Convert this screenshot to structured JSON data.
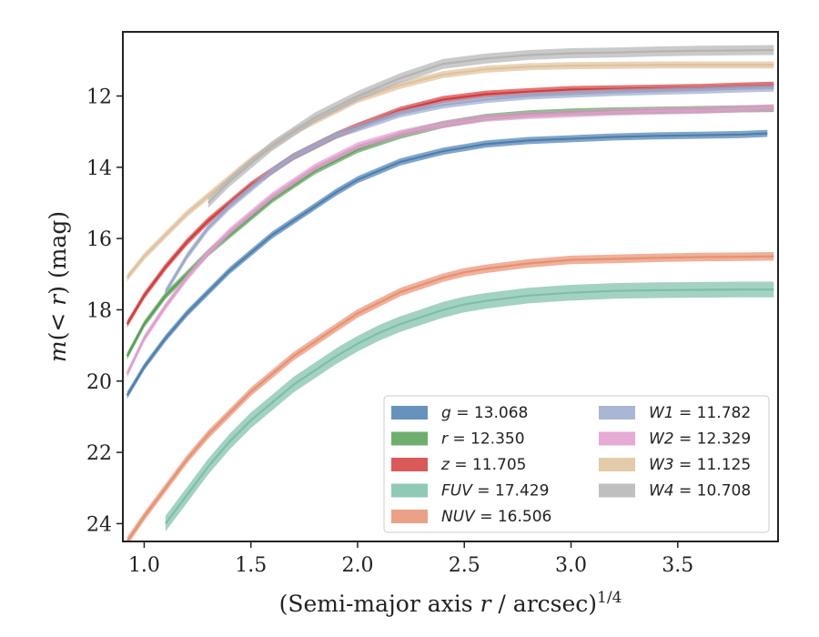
{
  "chart_data": {
    "type": "line",
    "xlabel": "(Semi-major axis r / arcsec)^{1/4}",
    "ylabel": "m(< r) (mag)",
    "xlim": [
      0.9,
      3.97
    ],
    "ylim": [
      24.5,
      10.2
    ],
    "y_inverted": true,
    "grid": false,
    "legend_placement": "lower-right",
    "legend_columns": 2,
    "xticks": [
      "1.0",
      "1.5",
      "2.0",
      "2.5",
      "3.0",
      "3.5"
    ],
    "xtick_values": [
      1.0,
      1.5,
      2.0,
      2.5,
      3.0,
      3.5
    ],
    "yticks": [
      "12",
      "14",
      "16",
      "18",
      "20",
      "22",
      "24"
    ],
    "ytick_values": [
      12,
      14,
      16,
      18,
      20,
      22,
      24
    ],
    "series": [
      {
        "name": "g",
        "legend": "g = 13.068",
        "color": "#4c7fb0",
        "band": 0.1,
        "x": [
          0.92,
          1.0,
          1.1,
          1.2,
          1.3,
          1.4,
          1.5,
          1.6,
          1.7,
          1.8,
          1.9,
          2.0,
          2.2,
          2.4,
          2.6,
          2.8,
          3.0,
          3.2,
          3.4,
          3.6,
          3.8,
          3.92
        ],
        "y": [
          20.4,
          19.6,
          18.8,
          18.1,
          17.5,
          16.9,
          16.4,
          15.9,
          15.5,
          15.1,
          14.7,
          14.35,
          13.85,
          13.55,
          13.35,
          13.25,
          13.2,
          13.15,
          13.12,
          13.1,
          13.08,
          13.05
        ]
      },
      {
        "name": "r",
        "legend": "r = 12.350",
        "color": "#55a154",
        "band": 0.1,
        "x": [
          0.92,
          1.0,
          1.1,
          1.2,
          1.3,
          1.4,
          1.5,
          1.6,
          1.7,
          1.8,
          1.9,
          2.0,
          2.2,
          2.4,
          2.6,
          2.8,
          3.0,
          3.2,
          3.4,
          3.6,
          3.8,
          3.95
        ],
        "y": [
          19.3,
          18.4,
          17.6,
          17.0,
          16.4,
          15.9,
          15.4,
          14.9,
          14.5,
          14.1,
          13.8,
          13.5,
          13.1,
          12.8,
          12.6,
          12.5,
          12.45,
          12.42,
          12.4,
          12.38,
          12.36,
          12.35
        ]
      },
      {
        "name": "z",
        "legend": "z = 11.705",
        "color": "#d43c3c",
        "band": 0.1,
        "x": [
          0.92,
          1.0,
          1.1,
          1.2,
          1.3,
          1.4,
          1.5,
          1.6,
          1.7,
          1.8,
          1.9,
          2.0,
          2.2,
          2.4,
          2.6,
          2.8,
          3.0,
          3.2,
          3.4,
          3.6,
          3.8,
          3.95
        ],
        "y": [
          18.4,
          17.6,
          16.8,
          16.1,
          15.5,
          15.0,
          14.5,
          14.1,
          13.7,
          13.4,
          13.1,
          12.85,
          12.4,
          12.1,
          11.95,
          11.88,
          11.82,
          11.8,
          11.78,
          11.76,
          11.72,
          11.7
        ]
      },
      {
        "name": "FUV",
        "legend": "FUV = 17.429",
        "color": "#7cbfa8",
        "band": 0.22,
        "x": [
          1.1,
          1.2,
          1.3,
          1.4,
          1.5,
          1.6,
          1.7,
          1.8,
          1.9,
          2.0,
          2.1,
          2.2,
          2.3,
          2.4,
          2.5,
          2.6,
          2.8,
          3.0,
          3.2,
          3.4,
          3.6,
          3.8,
          3.95
        ],
        "y": [
          24.0,
          23.2,
          22.4,
          21.7,
          21.1,
          20.6,
          20.1,
          19.7,
          19.3,
          18.95,
          18.65,
          18.4,
          18.2,
          18.0,
          17.85,
          17.75,
          17.6,
          17.52,
          17.47,
          17.45,
          17.44,
          17.43,
          17.43
        ]
      },
      {
        "name": "NUV",
        "legend": "NUV = 16.506",
        "color": "#e89070",
        "band": 0.12,
        "x": [
          0.92,
          1.0,
          1.1,
          1.2,
          1.3,
          1.4,
          1.5,
          1.6,
          1.7,
          1.8,
          1.9,
          2.0,
          2.2,
          2.4,
          2.5,
          2.6,
          2.8,
          3.0,
          3.2,
          3.4,
          3.6,
          3.8,
          3.95
        ],
        "y": [
          24.5,
          23.8,
          23.0,
          22.2,
          21.5,
          20.9,
          20.3,
          19.8,
          19.3,
          18.9,
          18.5,
          18.1,
          17.5,
          17.1,
          16.95,
          16.85,
          16.7,
          16.6,
          16.57,
          16.54,
          16.52,
          16.51,
          16.5
        ]
      },
      {
        "name": "W1",
        "legend": "W1 = 11.782",
        "color": "#9ba9cc",
        "band": 0.1,
        "x": [
          1.1,
          1.2,
          1.3,
          1.4,
          1.5,
          1.6,
          1.7,
          1.8,
          1.9,
          2.0,
          2.2,
          2.4,
          2.6,
          2.8,
          3.0,
          3.2,
          3.4,
          3.6,
          3.8,
          3.95
        ],
        "y": [
          17.5,
          16.5,
          15.7,
          15.1,
          14.6,
          14.1,
          13.7,
          13.4,
          13.1,
          12.9,
          12.5,
          12.25,
          12.1,
          12.0,
          11.95,
          11.9,
          11.87,
          11.84,
          11.8,
          11.78
        ]
      },
      {
        "name": "W2",
        "legend": "W2 = 12.329",
        "color": "#e09ccc",
        "band": 0.1,
        "x": [
          0.92,
          1.0,
          1.1,
          1.2,
          1.3,
          1.4,
          1.5,
          1.6,
          1.7,
          1.8,
          1.9,
          2.0,
          2.2,
          2.4,
          2.6,
          2.8,
          3.0,
          3.2,
          3.4,
          3.6,
          3.8,
          3.95
        ],
        "y": [
          19.8,
          18.8,
          17.9,
          17.1,
          16.4,
          15.8,
          15.3,
          14.8,
          14.4,
          14.0,
          13.7,
          13.4,
          13.05,
          12.8,
          12.62,
          12.55,
          12.5,
          12.45,
          12.42,
          12.4,
          12.36,
          12.33
        ]
      },
      {
        "name": "W3",
        "legend": "W3 = 11.125",
        "color": "#dfc29b",
        "band": 0.1,
        "x": [
          0.92,
          1.0,
          1.1,
          1.2,
          1.3,
          1.4,
          1.5,
          1.6,
          1.7,
          1.8,
          1.9,
          2.0,
          2.2,
          2.4,
          2.6,
          2.8,
          3.0,
          3.2,
          3.4,
          3.6,
          3.8,
          3.95
        ],
        "y": [
          17.1,
          16.5,
          15.9,
          15.3,
          14.8,
          14.3,
          13.8,
          13.4,
          13.0,
          12.7,
          12.4,
          12.1,
          11.7,
          11.4,
          11.25,
          11.18,
          11.15,
          11.14,
          11.13,
          11.13,
          11.13,
          11.13
        ]
      },
      {
        "name": "W4",
        "legend": "W4 = 10.708",
        "color": "#b4b4b4",
        "band": 0.14,
        "x": [
          1.3,
          1.4,
          1.5,
          1.6,
          1.7,
          1.8,
          1.9,
          2.0,
          2.2,
          2.4,
          2.6,
          2.8,
          3.0,
          3.2,
          3.4,
          3.6,
          3.8,
          3.95
        ],
        "y": [
          15.0,
          14.4,
          13.9,
          13.4,
          13.0,
          12.6,
          12.3,
          12.0,
          11.5,
          11.1,
          10.95,
          10.85,
          10.8,
          10.78,
          10.75,
          10.73,
          10.72,
          10.71
        ]
      }
    ]
  }
}
